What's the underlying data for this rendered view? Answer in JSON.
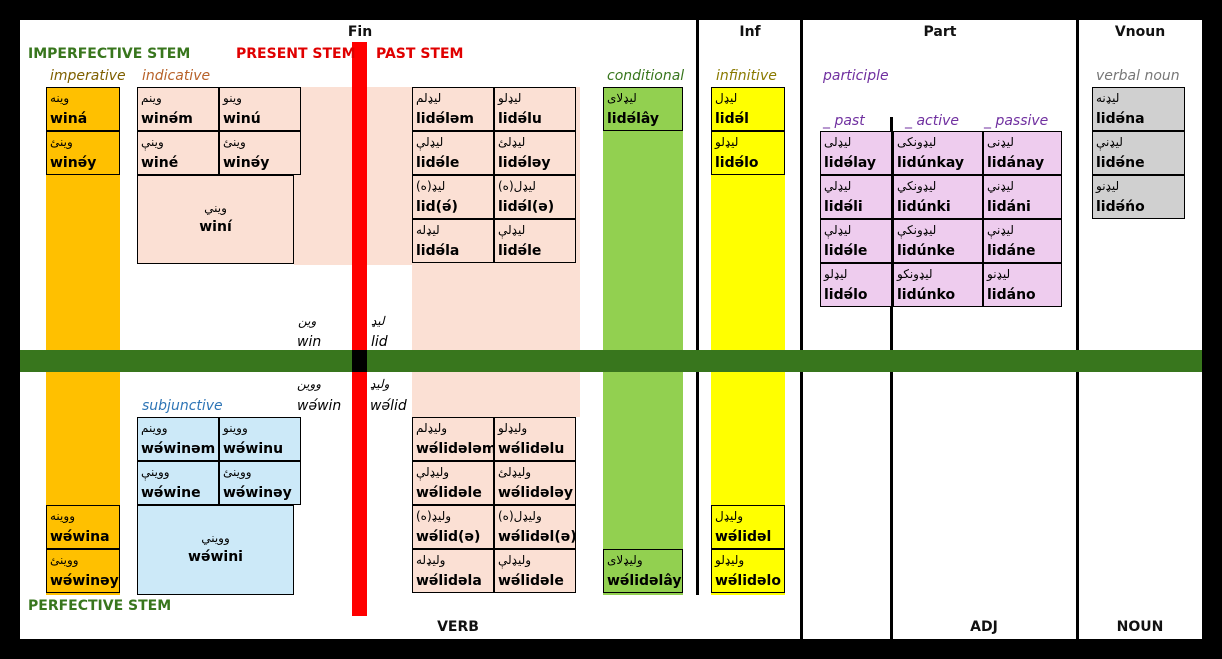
{
  "headers": {
    "fin": "Fin",
    "inf": "Inf",
    "part": "Part",
    "vnoun": "Vnoun",
    "verb": "VERB",
    "adj": "ADJ",
    "noun": "NOUN"
  },
  "stems": {
    "imperfective": "IMPERFECTIVE STEM",
    "present": "PRESENT STEM",
    "past": "PAST STEM",
    "perfective": "PERFECTIVE STEM"
  },
  "sections": {
    "imperative": "imperative",
    "indicative": "indicative",
    "subjunctive": "subjunctive",
    "conditional": "conditional",
    "infinitive": "infinitive",
    "participle": "participle",
    "past": "_ past",
    "active": "_ active",
    "passive": "_ passive",
    "verbal_noun": "verbal noun"
  },
  "roots": {
    "win_ar": "وين",
    "win": "win",
    "lid_ar": "لیډ",
    "lid": "lid",
    "wewin_ar": "ووین",
    "wewin": "wә́win",
    "welid_ar": "ولیډ",
    "welid": "wә́lid"
  },
  "colors": {
    "orange": "#FFC000",
    "peach": "#FBE0D4",
    "green": "#92D050",
    "yellow": "#FFFF00",
    "violet": "#EECCEE",
    "gray": "#D0D0D0",
    "blue": "#CCE9F8",
    "dark_green": "#38761D",
    "red": "#FF0000"
  },
  "imperative_top": [
    {
      "ar": "وینه",
      "tr": "winá"
    },
    {
      "ar": "وینئ",
      "tr": "winә́y"
    }
  ],
  "indicative": [
    {
      "ar": "وینم",
      "tr": "winә́m"
    },
    {
      "ar": "وینو",
      "tr": "winú"
    },
    {
      "ar": "وینې",
      "tr": "winé"
    },
    {
      "ar": "وینئ",
      "tr": "winә́y"
    }
  ],
  "indicative_3": {
    "ar": "ویني",
    "tr": "winí"
  },
  "past_top": [
    {
      "ar": "لیډلم",
      "tr": "lidә́lәm"
    },
    {
      "ar": "لیډلو",
      "tr": "lidә́lu"
    },
    {
      "ar": "لیډلې",
      "tr": "lidә́le"
    },
    {
      "ar": "لیډلئ",
      "tr": "lidә́lәy"
    },
    {
      "ar": "لیډ(ه)",
      "tr": "lid(ә́)"
    },
    {
      "ar": "لیډل(ه)",
      "tr": "lidә́l(ә)"
    },
    {
      "ar": "لیډله",
      "tr": "lidә́la"
    },
    {
      "ar": "لیډلې",
      "tr": "lidә́le"
    }
  ],
  "conditional_top": {
    "ar": "لیډلای",
    "tr": "lidә́lây"
  },
  "infinitive_top": [
    {
      "ar": "لیډل",
      "tr": "lidә́l"
    },
    {
      "ar": "لیډلو",
      "tr": "lidә́lo"
    }
  ],
  "participle_rows": [
    [
      {
        "ar": "لیډلی",
        "tr": "lidә́lay"
      },
      {
        "ar": "لیډونکی",
        "tr": "lidúnkay"
      },
      {
        "ar": "لیډنی",
        "tr": "lidánay"
      }
    ],
    [
      {
        "ar": "لیډلي",
        "tr": "lidә́li"
      },
      {
        "ar": "لیډونکي",
        "tr": "lidúnki"
      },
      {
        "ar": "لیډني",
        "tr": "lidáni"
      }
    ],
    [
      {
        "ar": "لیډلې",
        "tr": "lidә́le"
      },
      {
        "ar": "لیډونکې",
        "tr": "lidúnke"
      },
      {
        "ar": "لیډنې",
        "tr": "lidáne"
      }
    ],
    [
      {
        "ar": "لیډلو",
        "tr": "lidә́lo"
      },
      {
        "ar": "لیډونکو",
        "tr": "lidúnko"
      },
      {
        "ar": "لیډنو",
        "tr": "lidáno"
      }
    ]
  ],
  "verbal_noun": [
    {
      "ar": "لیډنه",
      "tr": "lidә́na"
    },
    {
      "ar": "لیډنې",
      "tr": "lidә́ne"
    },
    {
      "ar": "لیډنو",
      "tr": "lidә́ńo"
    }
  ],
  "subjunctive": [
    {
      "ar": "ووینم",
      "tr": "wә́winәm"
    },
    {
      "ar": "ووینو",
      "tr": "wә́winu"
    },
    {
      "ar": "ووینې",
      "tr": "wә́wine"
    },
    {
      "ar": "ووینئ",
      "tr": "wә́winәy"
    }
  ],
  "subjunctive_3": {
    "ar": "وویني",
    "tr": "wә́wini"
  },
  "imperative_bottom": [
    {
      "ar": "ووینه",
      "tr": "wә́wina"
    },
    {
      "ar": "ووینئ",
      "tr": "wә́winәy"
    }
  ],
  "past_bottom": [
    {
      "ar": "ولیډلم",
      "tr": "wә́lidәlәm"
    },
    {
      "ar": "ولیډلو",
      "tr": "wә́lidәlu"
    },
    {
      "ar": "ولیډلې",
      "tr": "wә́lidәle"
    },
    {
      "ar": "ولیډلئ",
      "tr": "wә́lidәlәy"
    },
    {
      "ar": "ولیډ(ه)",
      "tr": "wә́lid(ә)"
    },
    {
      "ar": "ولیډل(ه)",
      "tr": "wә́lidәl(ә)"
    },
    {
      "ar": "ولیډله",
      "tr": "wә́lidәla"
    },
    {
      "ar": "ولیډلې",
      "tr": "wә́lidәle"
    }
  ],
  "conditional_bottom": {
    "ar": "ولیډلای",
    "tr": "wә́lidәlây"
  },
  "infinitive_bottom": [
    {
      "ar": "ولیډل",
      "tr": "wә́lidәl"
    },
    {
      "ar": "ولیډلو",
      "tr": "wә́lidәlo"
    }
  ]
}
